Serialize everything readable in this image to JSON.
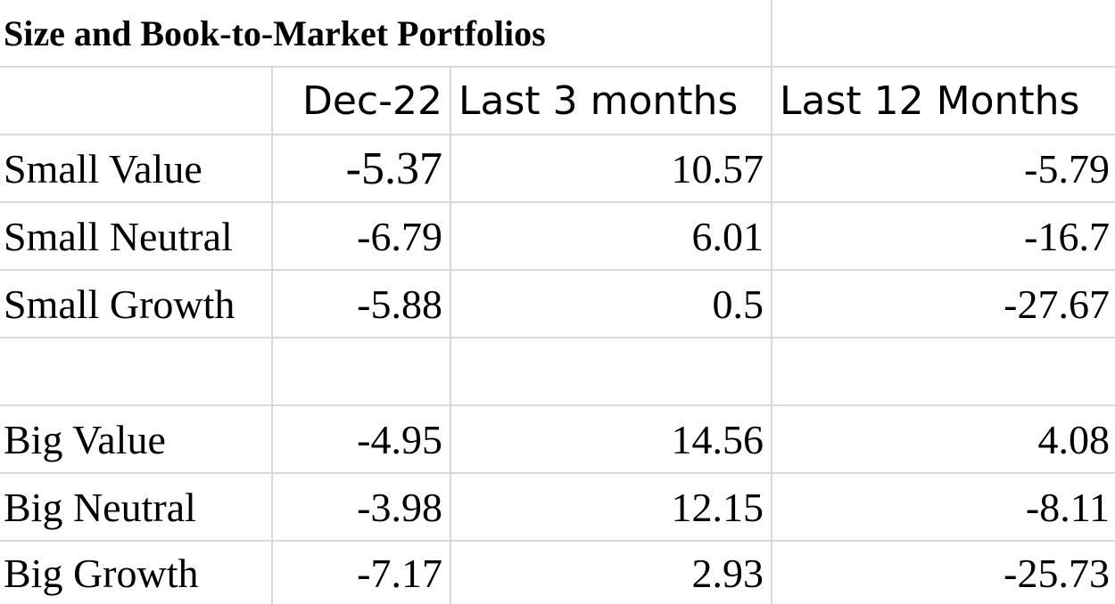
{
  "title": "Size and Book-to-Market Portfolios",
  "headers": [
    "",
    "Dec-22",
    "Last 3 months",
    "Last 12 Months"
  ],
  "rows": [
    {
      "label": "Small Value",
      "dec22": "-5.37",
      "last3": "10.57",
      "last12": "-5.79"
    },
    {
      "label": "Small Neutral",
      "dec22": "-6.79",
      "last3": "6.01",
      "last12": "-16.7"
    },
    {
      "label": "Small Growth",
      "dec22": "-5.88",
      "last3": "0.5",
      "last12": "-27.67"
    },
    {
      "label": "",
      "dec22": "",
      "last3": "",
      "last12": ""
    },
    {
      "label": "Big Value",
      "dec22": "-4.95",
      "last3": "14.56",
      "last12": "4.08"
    },
    {
      "label": "Big Neutral",
      "dec22": "-3.98",
      "last3": "12.15",
      "last12": "-8.11"
    },
    {
      "label": "Big Growth",
      "dec22": "-7.17",
      "last3": "2.93",
      "last12": "-25.73"
    }
  ]
}
